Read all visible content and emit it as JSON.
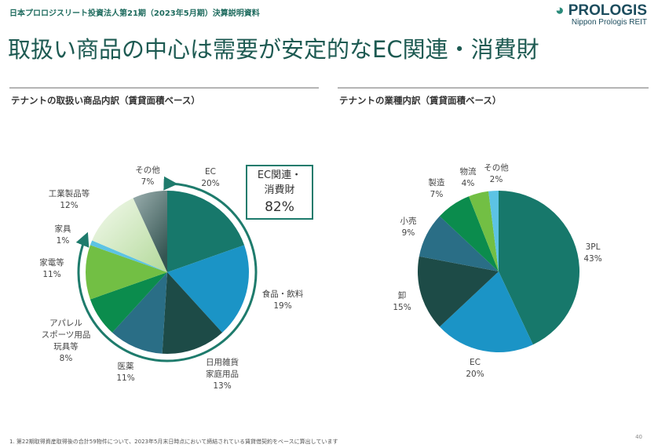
{
  "header": {
    "doc_title": "日本プロロジスリート投資法人第21期（2023年5月期）決算説明資料",
    "logo_name": "PROLOGIS",
    "logo_sub": "Nippon Prologis REIT"
  },
  "title": "取扱い商品の中心は需要が安定的なEC関連・消費財",
  "callout": {
    "line1": "EC関連・",
    "line2": "消費財",
    "value": "82%"
  },
  "footnote": "1. 第22期取得資産取得後の合計59物件について、2023年5月末日時点において締結されている賃貸借契約をベースに算出しています",
  "page_number": "40",
  "chart_data": [
    {
      "type": "pie",
      "title": "テナントの取扱い商品内訳（賃貸面積ベース）",
      "slices": [
        {
          "label": "EC",
          "value": 20,
          "display": "20%",
          "color": "#17786b"
        },
        {
          "label": "食品・飲料",
          "value": 19,
          "display": "19%",
          "color": "#1b94c6"
        },
        {
          "label": "日用雑貨\n家庭用品",
          "value": 13,
          "display": "13%",
          "color": "#1d4b47"
        },
        {
          "label": "医薬",
          "value": 11,
          "display": "11%",
          "color": "#2a6e86"
        },
        {
          "label": "アパレル\nスポーツ用品\n玩具等",
          "value": 8,
          "display": "8%",
          "color": "#0b8c4d"
        },
        {
          "label": "家電等",
          "value": 11,
          "display": "11%",
          "color": "#72bf44"
        },
        {
          "label": "家具",
          "value": 1,
          "display": "1%",
          "color": "#5cc3e4"
        },
        {
          "label": "工業製品等",
          "value": 12,
          "display": "12%",
          "color": "#d4ebc2"
        },
        {
          "label": "その他",
          "value": 7,
          "display": "7%",
          "color": "#6f8786"
        }
      ]
    },
    {
      "type": "pie",
      "title": "テナントの業種内訳（賃貸面積ベース）",
      "slices": [
        {
          "label": "3PL",
          "value": 43,
          "display": "43%",
          "color": "#17786b"
        },
        {
          "label": "EC",
          "value": 20,
          "display": "20%",
          "color": "#1b94c6"
        },
        {
          "label": "卸",
          "value": 15,
          "display": "15%",
          "color": "#1d4b47"
        },
        {
          "label": "小売",
          "value": 9,
          "display": "9%",
          "color": "#2a6e86"
        },
        {
          "label": "製造",
          "value": 7,
          "display": "7%",
          "color": "#0b8c4d"
        },
        {
          "label": "物流",
          "value": 4,
          "display": "4%",
          "color": "#72bf44"
        },
        {
          "label": "その他",
          "value": 2,
          "display": "2%",
          "color": "#5cc3e4"
        }
      ]
    }
  ]
}
